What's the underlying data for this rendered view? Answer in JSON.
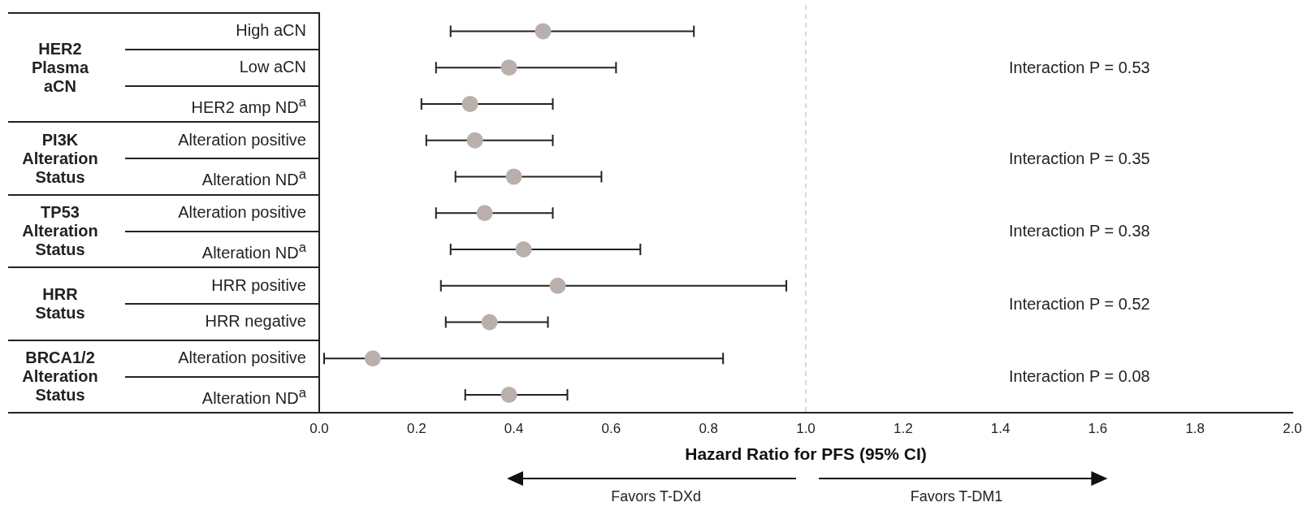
{
  "chart_data": {
    "type": "scatter",
    "orientation": "horizontal",
    "xlabel": "Hazard Ratio for PFS (95% CI)",
    "categories": [
      "High aCN",
      "Low aCN",
      "HER2 amp ND$^{a}$",
      "Alteration positive",
      "Alteration ND$^{a}$",
      "Alteration positive",
      "Alteration ND$^{a}$",
      "HRR positive",
      "HRR negative",
      "Alteration positive",
      "Alteration ND$^{a}$"
    ],
    "series": [
      {
        "color": "#bab0ab",
        "values": [
          0.46,
          0.39,
          0.31,
          0.32,
          0.4,
          0.34,
          0.42,
          0.49,
          0.35,
          0.11,
          0.39
        ],
        "errors": [
          [
            0.27,
            0.77
          ],
          [
            0.24,
            0.61
          ],
          [
            0.21,
            0.48
          ],
          [
            0.22,
            0.48
          ],
          [
            0.28,
            0.58
          ],
          [
            0.24,
            0.48
          ],
          [
            0.27,
            0.66
          ],
          [
            0.25,
            0.96
          ],
          [
            0.26,
            0.47
          ],
          [
            0.01,
            0.83
          ],
          [
            0.3,
            0.51
          ]
        ]
      }
    ],
    "xlim": [
      0,
      2
    ],
    "xticks": [
      {
        "value": 0,
        "label": "0.0"
      },
      0.2,
      0.4,
      0.6,
      0.8,
      {
        "value": 1,
        "label": "1.0"
      },
      1.2,
      1.4,
      1.6,
      1.8,
      {
        "value": 2,
        "label": "2.0"
      }
    ],
    "ref_lines": [
      {
        "axis": "x",
        "value": 1,
        "color": "#cccccc",
        "line_style": "dashed"
      }
    ],
    "marker": "circle",
    "grid": false,
    "legend": false,
    "annotations": [
      "HER2 Plasma aCN",
      "PI3K Alteration Status",
      "TP53 Alteration Status",
      "HRR Status",
      "BRCA1/2 Alteration Status",
      "Interaction P = 0.53",
      "Interaction P = 0.35",
      "Interaction P = 0.38",
      "Interaction P = 0.52",
      "Interaction P = 0.08",
      "Favors T-DXd",
      "Favors T-DM1"
    ]
  }
}
